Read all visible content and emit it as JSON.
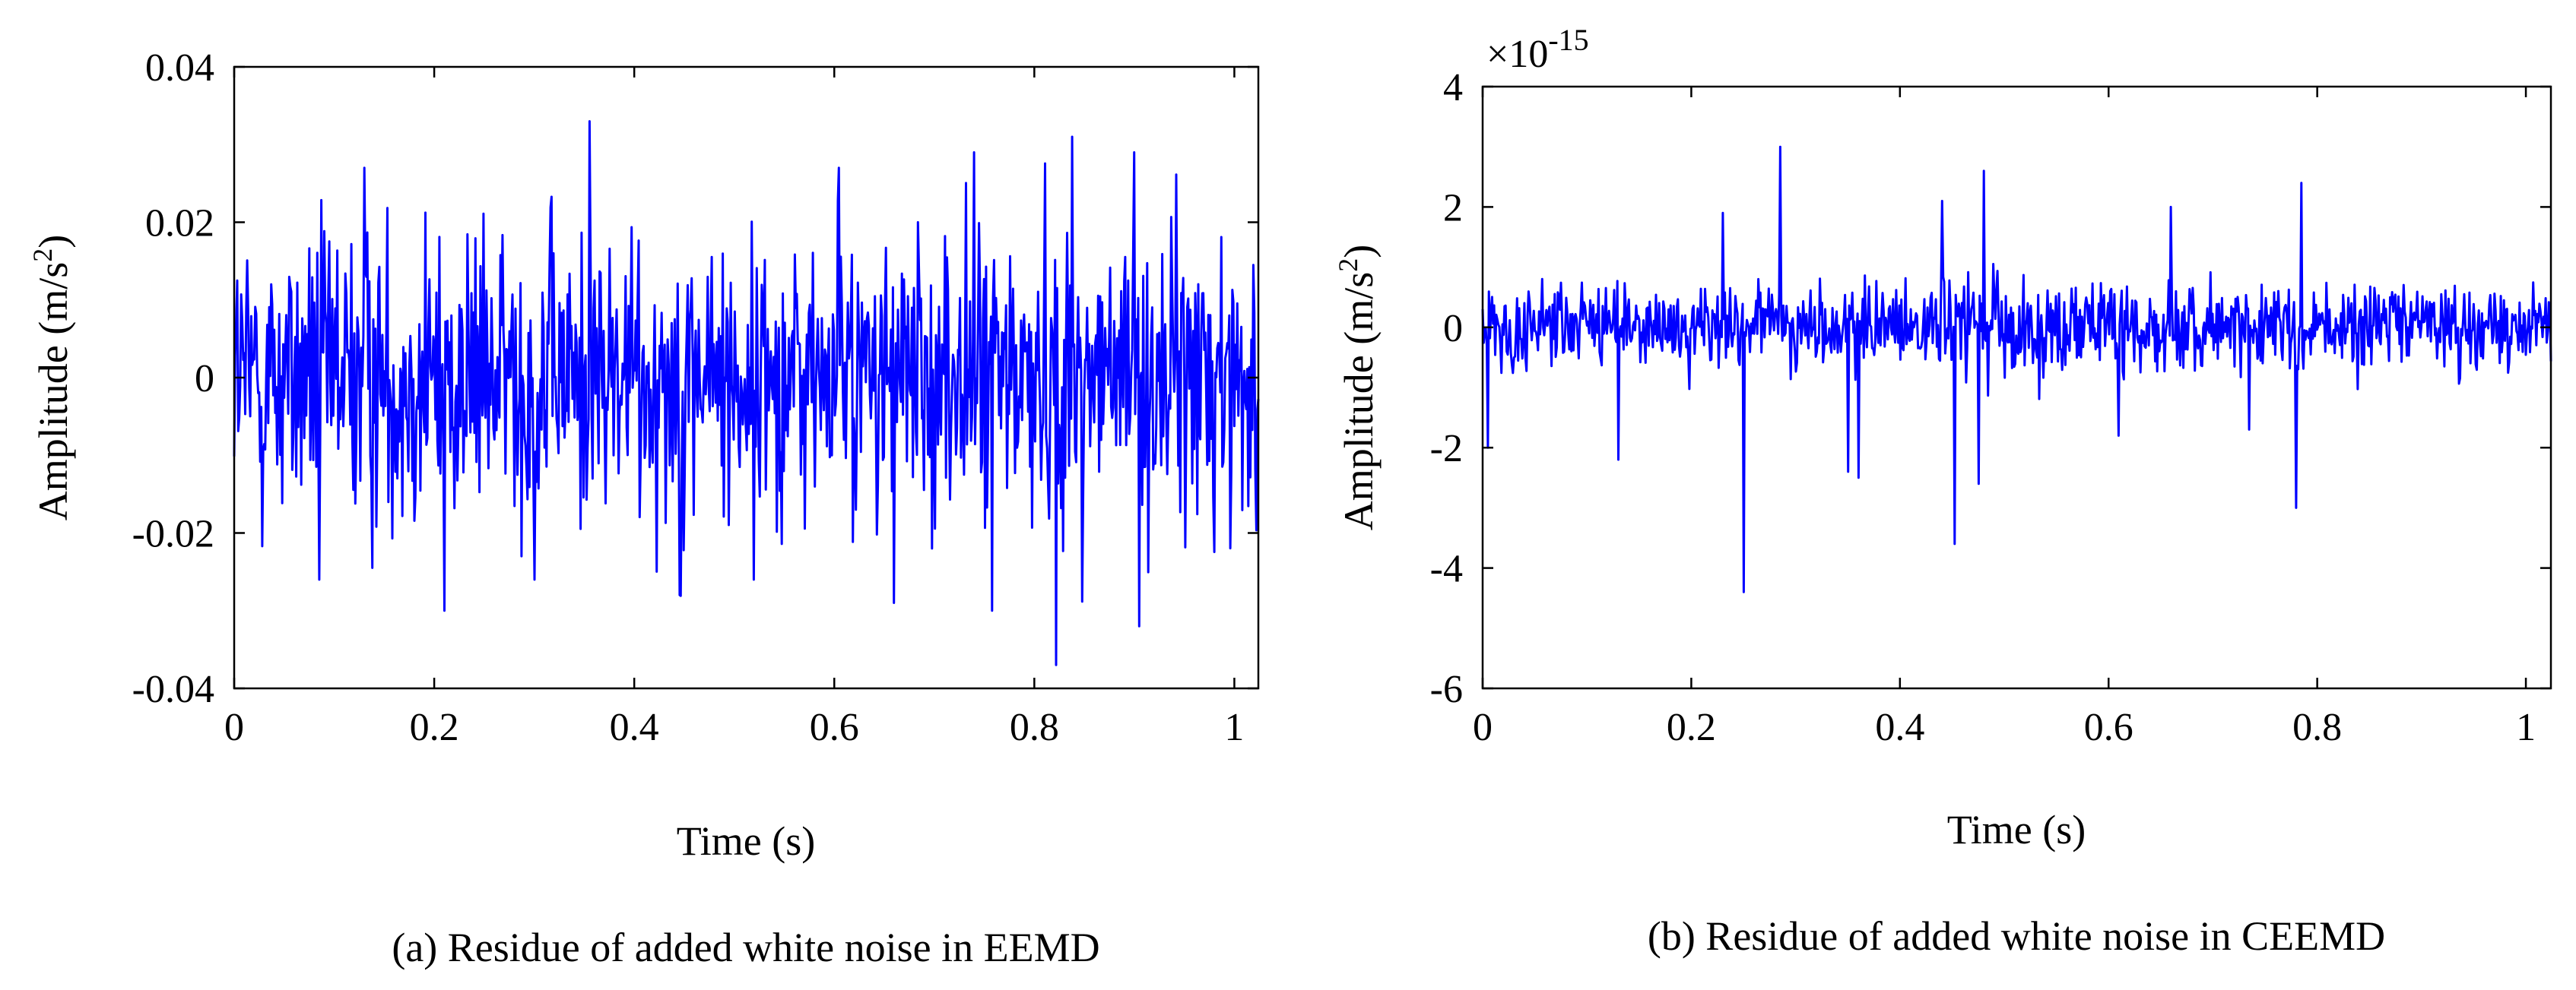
{
  "chart_data": [
    {
      "type": "line",
      "title": "",
      "caption": "(a) Residue of added white noise in EEMD",
      "xlabel": "Time (s)",
      "ylabel": "Amplitude (m/s",
      "ylabel_sup": "2",
      "ylabel_close": ")",
      "xlim": [
        0,
        1.024
      ],
      "ylim": [
        -0.04,
        0.04
      ],
      "xticks": [
        0,
        0.2,
        0.4,
        0.6,
        0.8,
        1
      ],
      "xtick_labels": [
        "0",
        "0.2",
        "0.4",
        "0.6",
        "0.8",
        "1"
      ],
      "yticks": [
        -0.04,
        -0.02,
        0,
        0.02,
        0.04
      ],
      "ytick_labels": [
        "-0.04",
        "-0.02",
        "0",
        "0.02",
        "0.04"
      ],
      "exponent_label": null,
      "series": [
        {
          "name": "residue",
          "color": "#0000ff",
          "description": "dense noise trace",
          "std": 0.0095,
          "peaks": [
            [
              0.355,
              0.033
            ],
            [
              0.838,
              0.031
            ],
            [
              0.13,
              0.027
            ],
            [
              0.21,
              0.026
            ],
            [
              0.74,
              0.029
            ],
            [
              0.9,
              0.029
            ],
            [
              0.605,
              0.027
            ],
            [
              0.822,
              -0.037
            ],
            [
              0.21,
              -0.03
            ],
            [
              0.085,
              -0.026
            ],
            [
              0.445,
              -0.028
            ],
            [
              0.66,
              -0.029
            ],
            [
              0.758,
              -0.03
            ],
            [
              0.905,
              -0.032
            ],
            [
              0.3,
              -0.026
            ],
            [
              0.52,
              -0.026
            ]
          ]
        }
      ]
    },
    {
      "type": "line",
      "title": "",
      "caption": "(b) Residue of added white noise in CEEMD",
      "xlabel": "Time (s)",
      "ylabel": "Amplitude (m/s",
      "ylabel_sup": "2",
      "ylabel_close": ")",
      "xlim": [
        0,
        1.024
      ],
      "ylim": [
        -6,
        4
      ],
      "xticks": [
        0,
        0.2,
        0.4,
        0.6,
        0.8,
        1
      ],
      "xtick_labels": [
        "0",
        "0.2",
        "0.4",
        "0.6",
        "0.8",
        "1"
      ],
      "yticks": [
        -6,
        -4,
        -2,
        0,
        2,
        4
      ],
      "ytick_labels": [
        "-6",
        "-4",
        "-2",
        "0",
        "2",
        "4"
      ],
      "exponent_label": "×10",
      "exponent_sup": "-15",
      "series": [
        {
          "name": "residue",
          "color": "#0000ff",
          "description": "dense noise trace (×1e-15)",
          "std": 0.38,
          "peaks": [
            [
              0.285,
              3.0
            ],
            [
              0.48,
              2.6
            ],
            [
              0.785,
              2.4
            ],
            [
              0.23,
              1.9
            ],
            [
              0.44,
              2.1
            ],
            [
              0.66,
              2.0
            ],
            [
              0.25,
              -4.4
            ],
            [
              0.452,
              -3.6
            ],
            [
              0.78,
              -3.0
            ],
            [
              0.475,
              -2.6
            ],
            [
              0.35,
              -2.4
            ],
            [
              0.36,
              -2.5
            ],
            [
              0.13,
              -2.2
            ],
            [
              0.61,
              -1.8
            ],
            [
              0.735,
              -1.7
            ],
            [
              0.005,
              -2.0
            ]
          ]
        }
      ]
    }
  ]
}
